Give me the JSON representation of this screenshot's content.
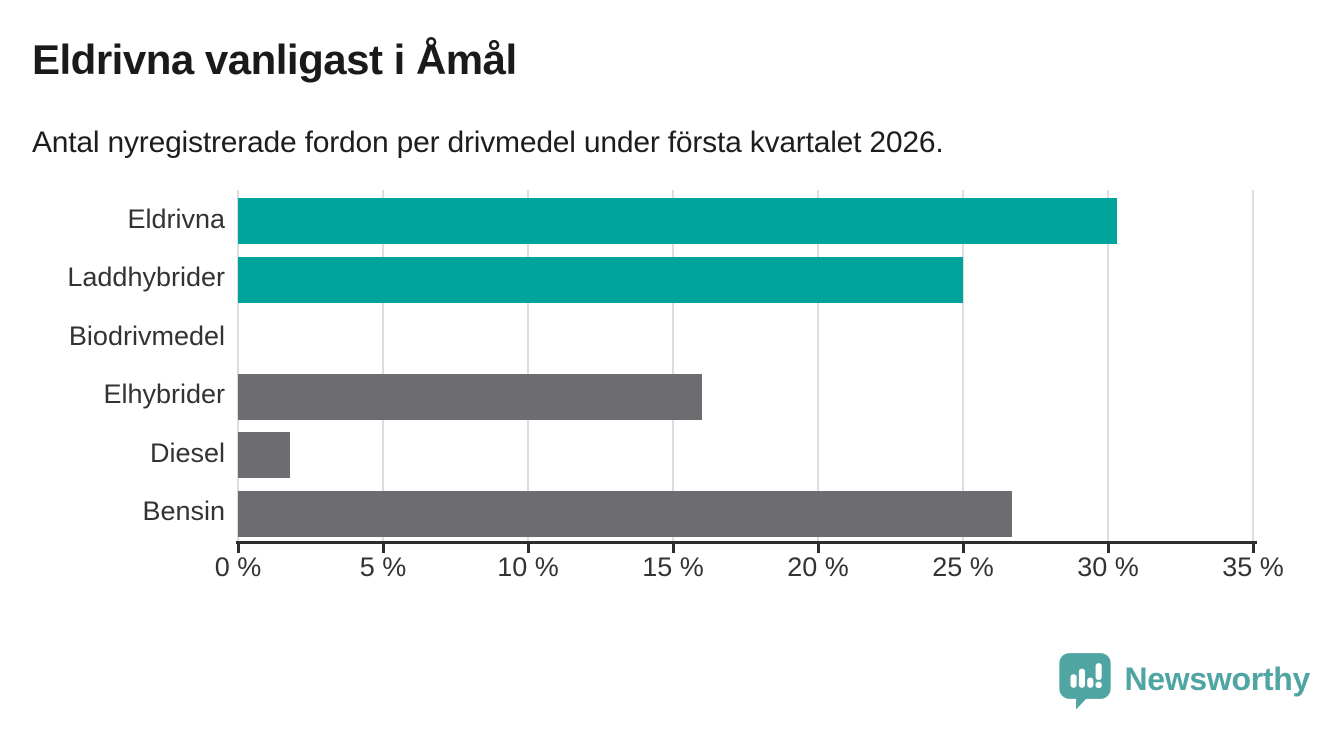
{
  "header": {
    "title": "Eldrivna vanligast i Åmål",
    "subtitle": "Antal nyregistrerade fordon per drivmedel under första kvartalet 2026."
  },
  "chart_data": {
    "type": "bar",
    "orientation": "horizontal",
    "title": "Eldrivna vanligast i Åmål",
    "subtitle": "Antal nyregistrerade fordon per drivmedel under första kvartalet 2026.",
    "categories": [
      "Eldrivna",
      "Laddhybrider",
      "Biodrivmedel",
      "Elhybrider",
      "Diesel",
      "Bensin"
    ],
    "values": [
      30.3,
      25.0,
      0,
      16.0,
      1.8,
      26.7
    ],
    "unit": "%",
    "xlim": [
      0,
      35
    ],
    "x_ticks": [
      0,
      5,
      10,
      15,
      20,
      25,
      30,
      35
    ],
    "x_tick_labels": [
      "0 %",
      "5 %",
      "10 %",
      "15 %",
      "20 %",
      "25 %",
      "30 %",
      "35 %"
    ],
    "bar_colors": [
      "#00a49c",
      "#00a49c",
      "#6c6c71",
      "#6c6c71",
      "#6c6c71",
      "#6c6c71"
    ],
    "highlight_color": "#00a49c",
    "base_color": "#6c6c71",
    "grid": true,
    "legend": false,
    "xlabel": "",
    "ylabel": ""
  },
  "branding": {
    "logo_text": "Newsworthy",
    "logo_color": "#4fa5a2",
    "logo_icon": "newsworthy-speech-bubble-bar-chart-icon"
  }
}
